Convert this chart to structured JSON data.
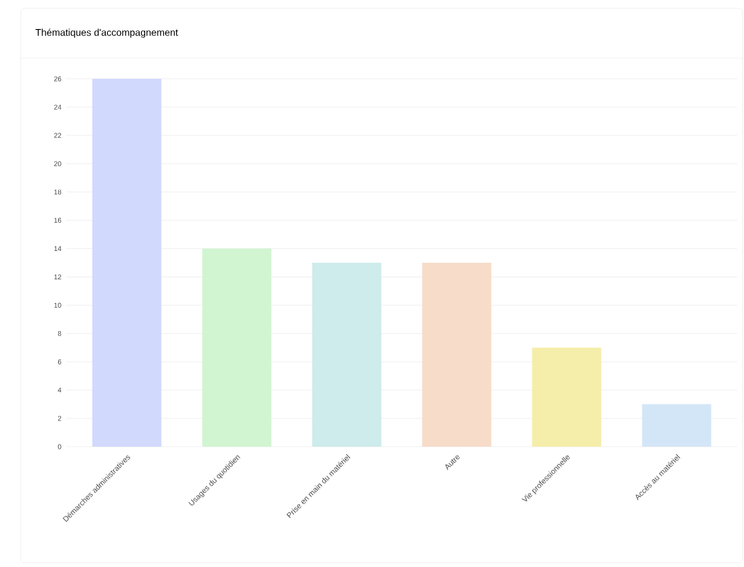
{
  "chart_data": {
    "type": "bar",
    "title": "Thématiques d'accompagnement",
    "categories": [
      "Démarches administratives",
      "Usages du quotidien",
      "Prise en main du matériel",
      "Autre",
      "Vie professionnelle",
      "Accès au matériel"
    ],
    "values": [
      26,
      14,
      13,
      13,
      7,
      3
    ],
    "colors": [
      "#d1d9fd",
      "#d1f5d1",
      "#cdeceb",
      "#f7dcc9",
      "#f5edaa",
      "#d3e6f7"
    ],
    "ylim": [
      0,
      26
    ],
    "yticks": [
      0,
      2,
      4,
      6,
      8,
      10,
      12,
      14,
      16,
      18,
      20,
      22,
      24,
      26
    ],
    "grid": "y"
  }
}
